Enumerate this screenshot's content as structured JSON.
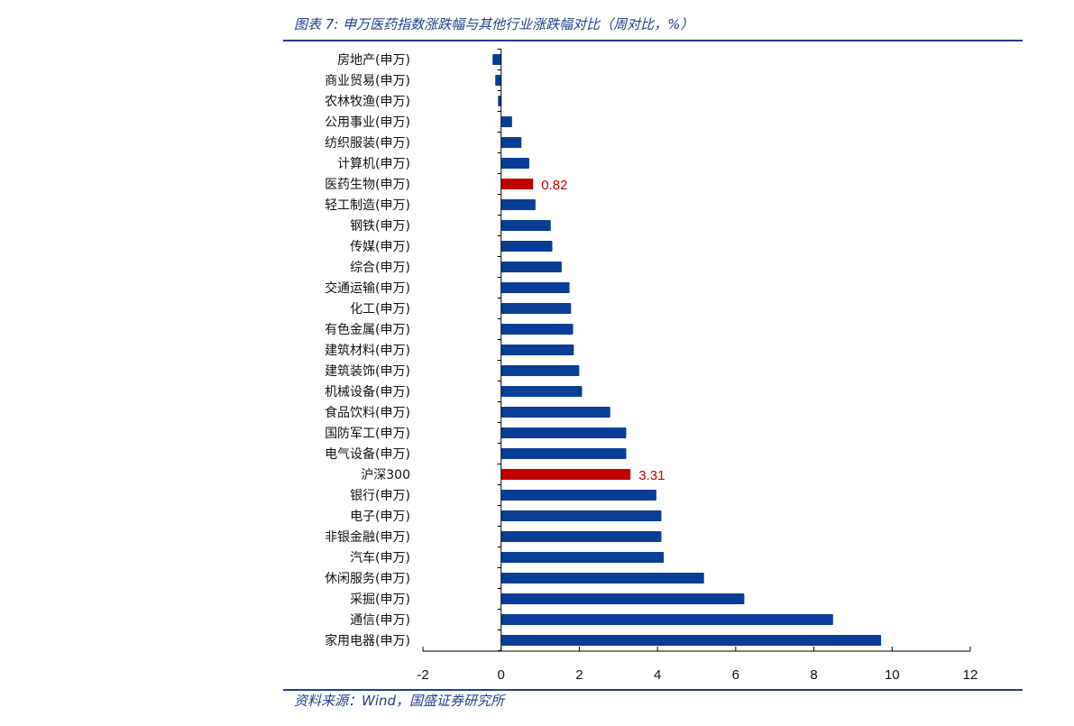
{
  "figure": {
    "title": "图表 7:  申万医药指数涨跌幅与其他行业涨跌幅对比（周对比，%）",
    "source": "资料来源：Wind，国盛证券研究所"
  },
  "colors": {
    "bar": "#0a3e96",
    "highlight": "#c00000",
    "axis": "#000000",
    "rule": "#1f3e8c"
  },
  "chart_data": {
    "type": "bar",
    "orientation": "horizontal",
    "categories": [
      "房地产(申万)",
      "商业贸易(申万)",
      "农林牧渔(申万)",
      "公用事业(申万)",
      "纺织服装(申万)",
      "计算机(申万)",
      "医药生物(申万)",
      "轻工制造(申万)",
      "钢铁(申万)",
      "传媒(申万)",
      "综合(申万)",
      "交通运输(申万)",
      "化工(申万)",
      "有色金属(申万)",
      "建筑材料(申万)",
      "建筑装饰(申万)",
      "机械设备(申万)",
      "食品饮料(申万)",
      "国防军工(申万)",
      "电气设备(申万)",
      "沪深300",
      "银行(申万)",
      "电子(申万)",
      "非银金融(申万)",
      "汽车(申万)",
      "休闲服务(申万)",
      "采掘(申万)",
      "通信(申万)",
      "家用电器(申万)"
    ],
    "values": [
      -0.22,
      -0.15,
      -0.08,
      0.28,
      0.52,
      0.72,
      0.82,
      0.88,
      1.27,
      1.31,
      1.55,
      1.75,
      1.79,
      1.84,
      1.86,
      2.0,
      2.07,
      2.79,
      3.2,
      3.2,
      3.31,
      3.97,
      4.1,
      4.1,
      4.16,
      5.19,
      6.22,
      8.49,
      9.72
    ],
    "highlight": [
      "医药生物(申万)",
      "沪深300"
    ],
    "data_labels": [
      {
        "category": "医药生物(申万)",
        "text": "0.82"
      },
      {
        "category": "沪深300",
        "text": "3.31"
      }
    ],
    "xlim": [
      -2,
      12
    ],
    "xticks": [
      "-2",
      "0",
      "2",
      "4",
      "6",
      "8",
      "10",
      "12"
    ],
    "grid": false,
    "legend": "none"
  }
}
